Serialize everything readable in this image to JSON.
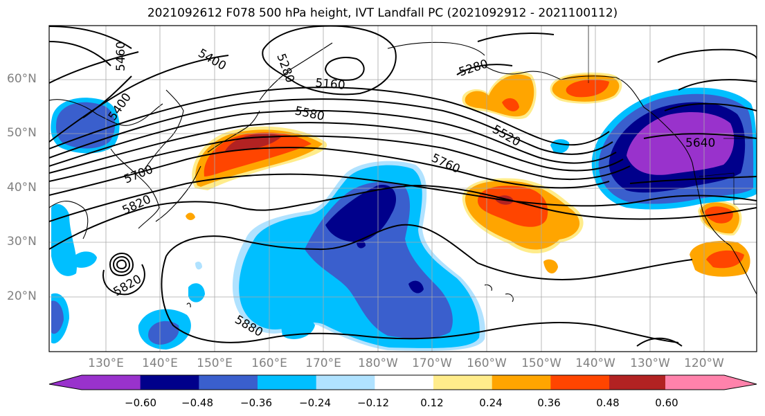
{
  "title": "2021092612 F078 500 hPa height, IVT Landfall PC (2021092912 - 2021100112)",
  "lat_labels": [
    "60°N",
    "50°N",
    "40°N",
    "30°N",
    "20°N"
  ],
  "lon_labels": [
    "130°E",
    "140°E",
    "150°E",
    "160°E",
    "170°E",
    "180°W",
    "170°W",
    "160°W",
    "150°W",
    "140°W",
    "130°W",
    "120°W"
  ],
  "contour_labels": [
    "5460",
    "5400",
    "5400",
    "5280",
    "5160",
    "5580",
    "5520",
    "5760",
    "5700",
    "5820",
    "5820",
    "5880",
    "5640",
    "5280"
  ],
  "colorbar": {
    "ticks": [
      "−0.60",
      "−0.48",
      "−0.36",
      "−0.24",
      "−0.12",
      "0.12",
      "0.24",
      "0.36",
      "0.48",
      "0.60"
    ],
    "colors": [
      "#9932cc",
      "#00008b",
      "#3a5fcd",
      "#00bfff",
      "#b0e2ff",
      "#ffffff",
      "#ffec8b",
      "#ffa500",
      "#ff4500",
      "#b22222",
      "#ff82ab"
    ]
  }
}
